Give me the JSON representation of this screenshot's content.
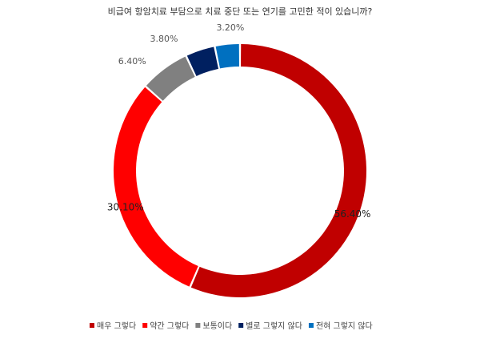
{
  "chart_data": {
    "type": "pie",
    "variant": "donut",
    "title": "비급여 항암치료 부담으로 치료 중단 또는 연기를 고민한 적이 있습니까?",
    "categories": [
      "매우 그렇다",
      "약간 그렇다",
      "보통이다",
      "별로 그렇지 않다",
      "전혀 그렇지 않다"
    ],
    "values": [
      56.4,
      30.1,
      6.4,
      3.8,
      3.2
    ],
    "labels": [
      "56.40%",
      "30.10%",
      "6.40%",
      "3.80%",
      "3.20%"
    ],
    "colors": [
      "#c00000",
      "#ff0000",
      "#808080",
      "#002060",
      "#0070c0"
    ],
    "legend_position": "bottom"
  }
}
